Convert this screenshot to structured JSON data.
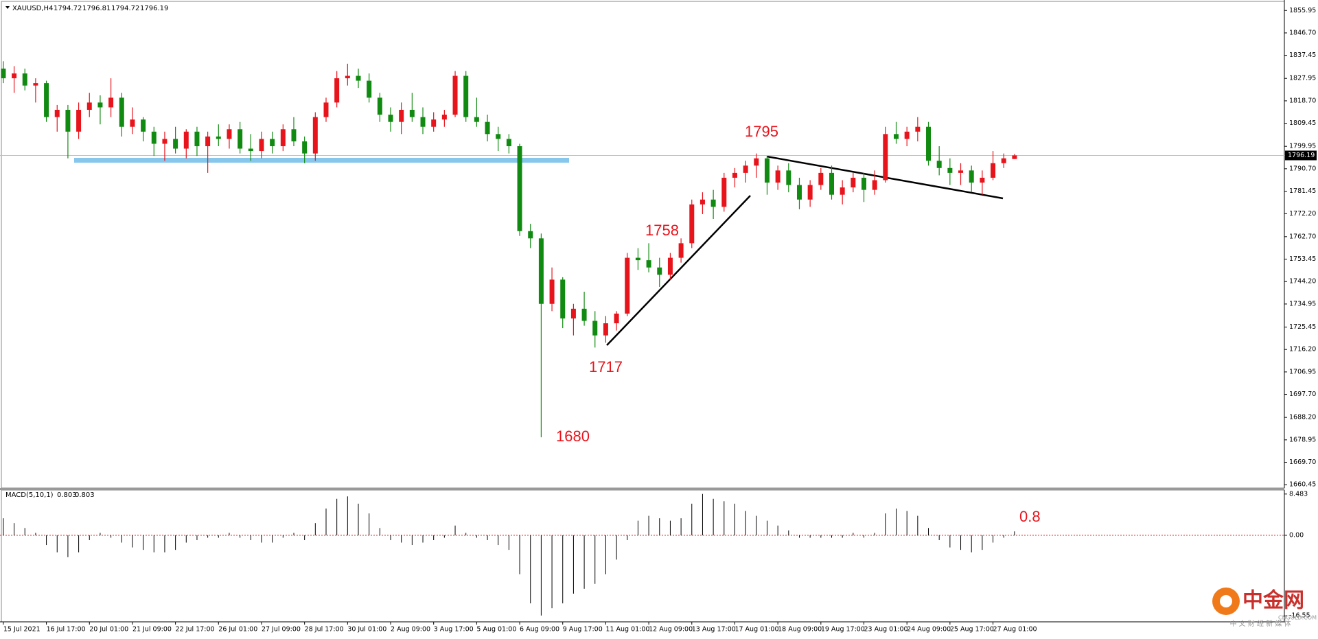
{
  "chart_data": {
    "type": "candlestick",
    "title": "XAUUSD,H4",
    "up_color": "#e8141c",
    "down_color": "#118a11",
    "candles": [
      [
        1832,
        1835,
        1826,
        1828
      ],
      [
        1828,
        1833,
        1822,
        1830
      ],
      [
        1830,
        1832,
        1823,
        1825
      ],
      [
        1825,
        1828,
        1818,
        1826
      ],
      [
        1826,
        1827,
        1810,
        1812
      ],
      [
        1812,
        1817,
        1806,
        1815
      ],
      [
        1815,
        1817,
        1795,
        1806
      ],
      [
        1806,
        1818,
        1803,
        1815
      ],
      [
        1815,
        1822,
        1812,
        1818
      ],
      [
        1818,
        1821,
        1809,
        1816
      ],
      [
        1816,
        1828,
        1812,
        1820
      ],
      [
        1820,
        1822,
        1804,
        1808
      ],
      [
        1808,
        1816,
        1805,
        1811
      ],
      [
        1811,
        1812,
        1802,
        1806
      ],
      [
        1806,
        1808,
        1796,
        1801
      ],
      [
        1801,
        1806,
        1794,
        1803
      ],
      [
        1803,
        1808,
        1797,
        1799
      ],
      [
        1799,
        1807,
        1795,
        1806
      ],
      [
        1806,
        1808,
        1796,
        1800
      ],
      [
        1800,
        1806,
        1789,
        1804
      ],
      [
        1804,
        1809,
        1800,
        1803
      ],
      [
        1803,
        1809,
        1799,
        1807
      ],
      [
        1807,
        1810,
        1797,
        1799
      ],
      [
        1799,
        1805,
        1794,
        1798
      ],
      [
        1798,
        1806,
        1795,
        1803
      ],
      [
        1803,
        1806,
        1797,
        1800
      ],
      [
        1800,
        1809,
        1798,
        1807
      ],
      [
        1807,
        1812,
        1800,
        1802
      ],
      [
        1802,
        1804,
        1793,
        1797
      ],
      [
        1797,
        1814,
        1794,
        1812
      ],
      [
        1812,
        1820,
        1810,
        1818
      ],
      [
        1818,
        1831,
        1816,
        1828
      ],
      [
        1828,
        1834,
        1825,
        1829
      ],
      [
        1829,
        1832,
        1824,
        1827
      ],
      [
        1827,
        1830,
        1818,
        1820
      ],
      [
        1820,
        1822,
        1810,
        1813
      ],
      [
        1813,
        1816,
        1806,
        1810
      ],
      [
        1810,
        1818,
        1805,
        1815
      ],
      [
        1815,
        1822,
        1810,
        1812
      ],
      [
        1812,
        1816,
        1805,
        1808
      ],
      [
        1808,
        1814,
        1806,
        1811
      ],
      [
        1811,
        1815,
        1808,
        1813
      ],
      [
        1813,
        1831,
        1812,
        1829
      ],
      [
        1829,
        1831,
        1810,
        1812
      ],
      [
        1812,
        1820,
        1808,
        1810
      ],
      [
        1810,
        1813,
        1802,
        1805
      ],
      [
        1805,
        1808,
        1798,
        1803
      ],
      [
        1803,
        1805,
        1797,
        1800
      ],
      [
        1800,
        1801,
        1763,
        1765
      ],
      [
        1765,
        1768,
        1758,
        1762
      ],
      [
        1762,
        1764,
        1680,
        1735
      ],
      [
        1735,
        1750,
        1732,
        1745
      ],
      [
        1745,
        1746,
        1725,
        1729
      ],
      [
        1729,
        1735,
        1722,
        1733
      ],
      [
        1733,
        1740,
        1726,
        1728
      ],
      [
        1728,
        1732,
        1717,
        1722
      ],
      [
        1722,
        1730,
        1719,
        1727
      ],
      [
        1727,
        1732,
        1724,
        1731
      ],
      [
        1731,
        1756,
        1730,
        1754
      ],
      [
        1754,
        1758,
        1749,
        1753
      ],
      [
        1753,
        1760,
        1748,
        1750
      ],
      [
        1750,
        1754,
        1742,
        1747
      ],
      [
        1747,
        1756,
        1745,
        1754
      ],
      [
        1754,
        1762,
        1752,
        1760
      ],
      [
        1760,
        1778,
        1758,
        1776
      ],
      [
        1776,
        1781,
        1772,
        1778
      ],
      [
        1778,
        1782,
        1770,
        1775
      ],
      [
        1775,
        1789,
        1773,
        1787
      ],
      [
        1787,
        1791,
        1783,
        1789
      ],
      [
        1789,
        1794,
        1785,
        1792
      ],
      [
        1792,
        1797,
        1787,
        1795
      ],
      [
        1795,
        1796,
        1780,
        1785
      ],
      [
        1785,
        1792,
        1782,
        1790
      ],
      [
        1790,
        1793,
        1781,
        1784
      ],
      [
        1784,
        1787,
        1774,
        1778
      ],
      [
        1778,
        1786,
        1775,
        1784
      ],
      [
        1784,
        1791,
        1782,
        1789
      ],
      [
        1789,
        1792,
        1778,
        1780
      ],
      [
        1780,
        1786,
        1776,
        1783
      ],
      [
        1783,
        1789,
        1781,
        1787
      ],
      [
        1787,
        1789,
        1777,
        1782
      ],
      [
        1782,
        1790,
        1780,
        1786
      ],
      [
        1786,
        1808,
        1785,
        1805
      ],
      [
        1805,
        1810,
        1801,
        1803
      ],
      [
        1803,
        1808,
        1800,
        1806
      ],
      [
        1806,
        1812,
        1802,
        1808
      ],
      [
        1808,
        1810,
        1792,
        1794
      ],
      [
        1794,
        1800,
        1788,
        1791
      ],
      [
        1791,
        1795,
        1784,
        1789
      ],
      [
        1789,
        1793,
        1784,
        1790
      ],
      [
        1790,
        1792,
        1781,
        1785
      ],
      [
        1785,
        1790,
        1780,
        1787
      ],
      [
        1787,
        1798,
        1786,
        1793
      ],
      [
        1793,
        1797,
        1791,
        1795
      ],
      [
        1794.72,
        1796.81,
        1794.72,
        1796.19
      ]
    ],
    "ylim": [
      1659.1,
      1859.7
    ],
    "yticks": [
      1855.95,
      {
        "value": 1846.7,
        "label": "1846.70"
      },
      1837.45,
      1827.95,
      {
        "value": 1818.7,
        "label": "1818.70"
      },
      1809.45,
      1799.95,
      {
        "value": 1790.7,
        "label": "1790.70"
      },
      1781.45,
      {
        "value": 1772.2,
        "label": "1772.20"
      },
      {
        "value": 1762.7,
        "label": "1762.70"
      },
      1753.45,
      {
        "value": 1744.2,
        "label": "1744.20"
      },
      1734.95,
      1725.45,
      {
        "value": 1716.2,
        "label": "1716.20"
      },
      1706.95,
      {
        "value": 1697.7,
        "label": "1697.70"
      },
      {
        "value": 1688.2,
        "label": "1688.20"
      },
      1678.95,
      {
        "value": 1669.7,
        "label": "1669.70"
      },
      1660.45
    ],
    "xticks": [
      {
        "value": 0,
        "label": "15 Jul 2021"
      },
      {
        "value": 4,
        "label": "16 Jul 17:00"
      },
      {
        "value": 8,
        "label": "20 Jul 01:00"
      },
      {
        "value": 12,
        "label": "21 Jul 09:00"
      },
      {
        "value": 16,
        "label": "22 Jul 17:00"
      },
      {
        "value": 20,
        "label": "26 Jul 01:00"
      },
      {
        "value": 24,
        "label": "27 Jul 09:00"
      },
      {
        "value": 28,
        "label": "28 Jul 17:00"
      },
      {
        "value": 32,
        "label": "30 Jul 01:00"
      },
      {
        "value": 36,
        "label": "2 Aug 09:00"
      },
      {
        "value": 40,
        "label": "3 Aug 17:00"
      },
      {
        "value": 44,
        "label": "5 Aug 01:00"
      },
      {
        "value": 48,
        "label": "6 Aug 09:00"
      },
      {
        "value": 52,
        "label": "9 Aug 17:00"
      },
      {
        "value": 56,
        "label": "11 Aug 01:00"
      },
      {
        "value": 60,
        "label": "12 Aug 09:00"
      },
      {
        "value": 64,
        "label": "13 Aug 17:00"
      },
      {
        "value": 68,
        "label": "17 Aug 01:00"
      },
      {
        "value": 72,
        "label": "18 Aug 09:00"
      },
      {
        "value": 76,
        "label": "19 Aug 17:00"
      },
      {
        "value": 80,
        "label": "23 Aug 01:00"
      },
      {
        "value": 84,
        "label": "24 Aug 09:00"
      },
      {
        "value": 88,
        "label": "25 Aug 17:00"
      },
      {
        "value": 92,
        "label": "27 Aug 01:00"
      }
    ],
    "annotations": [
      "1795",
      "1758",
      "1717",
      "1680",
      "0.8"
    ],
    "macd": {
      "title": "MACD(5,10,1)",
      "color": "#000000",
      "values": [
        3.5,
        2.5,
        1.5,
        0.5,
        -2,
        -3.5,
        -4.5,
        -3.5,
        -1,
        0.5,
        -0.5,
        -1.5,
        -2.5,
        -3,
        -3.5,
        -3.5,
        -3,
        -1.5,
        -1,
        -0.5,
        -0.5,
        0.5,
        -0.5,
        -1,
        -1.5,
        -1.5,
        -0.5,
        0.5,
        -1,
        2.5,
        5.5,
        7.5,
        8,
        6.5,
        4.5,
        1.5,
        -1,
        -1.5,
        -2,
        -1.5,
        -1,
        -0.5,
        2,
        0.5,
        -0.5,
        -1,
        -2,
        -3,
        -8,
        -14,
        -16.5,
        -15,
        -14,
        -12,
        -11,
        -10,
        -8,
        -5,
        -1,
        3,
        4,
        3.5,
        3,
        3.5,
        6.5,
        8.5,
        7.5,
        7,
        6.5,
        5,
        4,
        3,
        2,
        1,
        -0.5,
        -0.5,
        -0.5,
        -0.5,
        -0.5,
        0.5,
        -0.5,
        0.5,
        4.5,
        5.5,
        5,
        4,
        1.5,
        -1,
        -2.5,
        -3,
        -3.5,
        -3,
        -1.5,
        -0.5,
        0.803
      ],
      "ylim": [
        -17.8,
        9.3
      ],
      "yticks": [
        8.483,
        {
          "value": 0,
          "label": "0.00"
        },
        -16.55
      ]
    },
    "watermark": {
      "logo": "中金网",
      "site": "CNGOLD.COM",
      "slogan": "中 文 财 经 新 媒 体"
    }
  }
}
